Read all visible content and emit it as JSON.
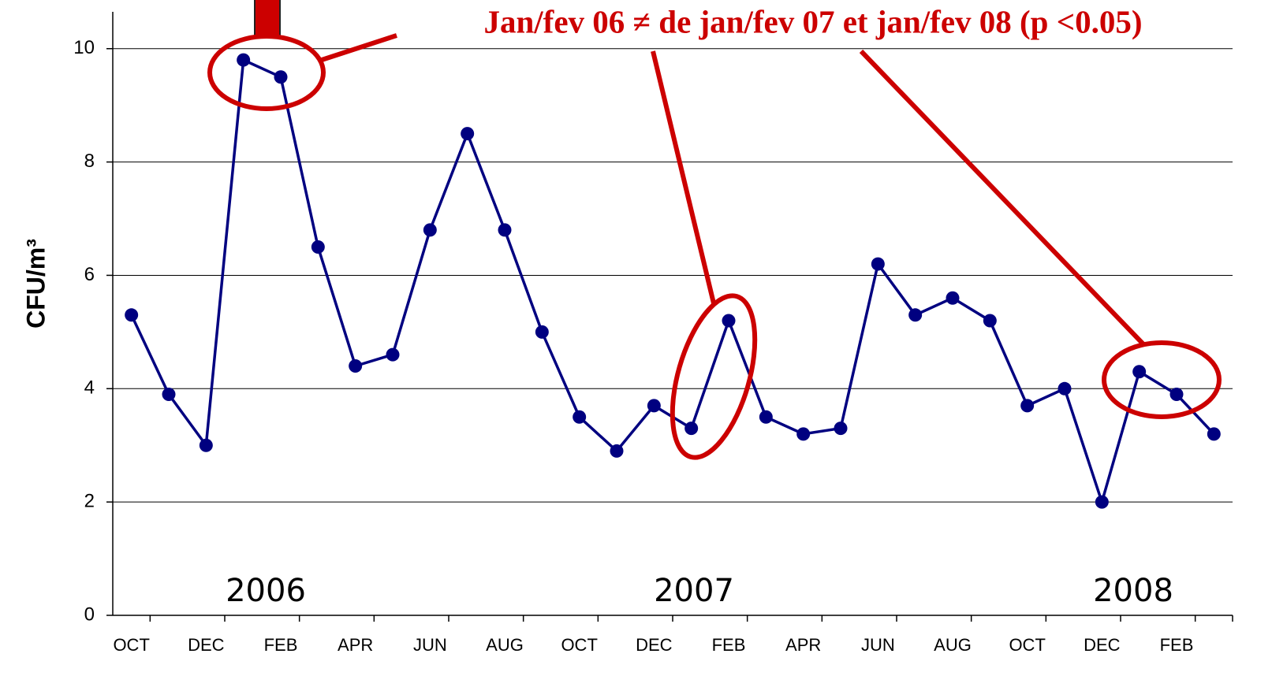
{
  "chart_data": {
    "type": "line",
    "y_label": "CFU/m³",
    "annotation": "Jan/fev 06 ≠ de jan/fev 07 et jan/fev 08 (p <0.05)",
    "year_labels": [
      "2006",
      "2007",
      "2008"
    ],
    "categories": [
      "OCT",
      null,
      "DEC",
      null,
      "FEB",
      null,
      "APR",
      null,
      "JUN",
      null,
      "AUG",
      null,
      "OCT",
      null,
      "DEC",
      null,
      "FEB",
      null,
      "APR",
      null,
      "JUN",
      null,
      "AUG",
      null,
      "OCT",
      null,
      "DEC",
      null,
      "FEB",
      null
    ],
    "values": [
      5.3,
      3.9,
      3.0,
      9.8,
      9.5,
      6.5,
      4.4,
      4.6,
      6.8,
      8.5,
      6.8,
      5.0,
      3.5,
      2.9,
      3.7,
      3.3,
      5.2,
      3.5,
      3.2,
      3.3,
      6.2,
      5.3,
      5.6,
      5.2,
      3.7,
      4.0,
      2.0,
      4.3,
      3.9,
      3.2
    ],
    "color": "#000080",
    "ylim": [
      0,
      10.65
    ],
    "yticks": [
      0,
      2,
      4,
      6,
      8,
      10
    ],
    "grid": true
  }
}
